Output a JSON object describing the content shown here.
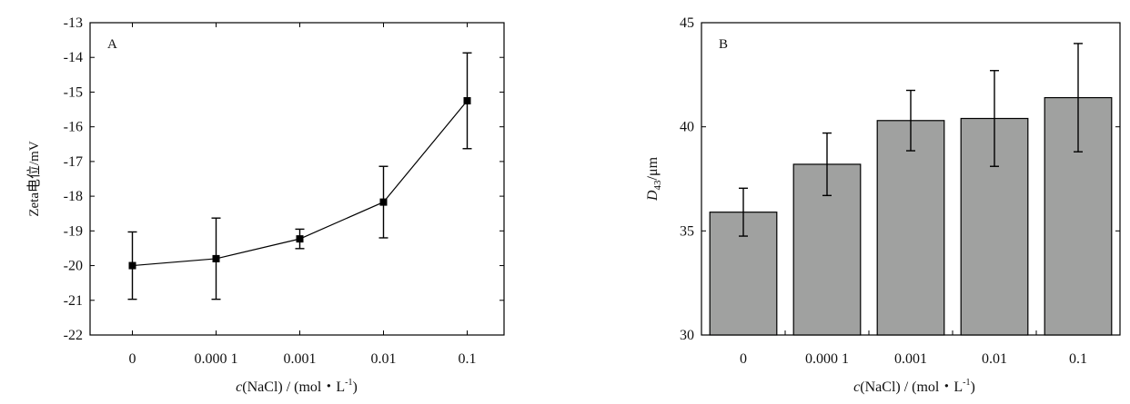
{
  "chart_data": [
    {
      "type": "line",
      "panel_label": "A",
      "categories": [
        "0",
        "0.000 1",
        "0.001",
        "0.01",
        "0.1"
      ],
      "series": [
        {
          "values": [
            -20.0,
            -19.8,
            -19.23,
            -18.17,
            -15.25
          ],
          "errors": [
            0.97,
            1.17,
            0.28,
            1.03,
            1.38
          ]
        }
      ],
      "ylim": [
        -22,
        -13
      ],
      "yticks": [
        "-13",
        "-14",
        "-15",
        "-16",
        "-17",
        "-18",
        "-19",
        "-20",
        "-21",
        "-22"
      ],
      "ylabel": "Zeta电位/mV",
      "xlabel_italic": "c",
      "xlabel_rest": "(NaCl) / (mol・L",
      "xlabel_sup": "-1",
      "xlabel_end": ")",
      "grid": false,
      "marker": "square"
    },
    {
      "type": "bar",
      "panel_label": "B",
      "categories": [
        "0",
        "0.000 1",
        "0.001",
        "0.01",
        "0.1"
      ],
      "series": [
        {
          "values": [
            35.9,
            38.2,
            40.3,
            40.4,
            41.4
          ],
          "errors": [
            1.15,
            1.5,
            1.45,
            2.3,
            2.6
          ]
        }
      ],
      "ylim": [
        30,
        45
      ],
      "yticks": [
        "30",
        "35",
        "40",
        "45"
      ],
      "ylabel_italic": "D",
      "ylabel_sub": "43",
      "ylabel_rest": "/μm",
      "xlabel_italic": "c",
      "xlabel_rest": "(NaCl) / (mol・L",
      "xlabel_sup": "-1",
      "xlabel_end": ")",
      "bar_color": "#a0a1a0",
      "grid": false
    }
  ]
}
